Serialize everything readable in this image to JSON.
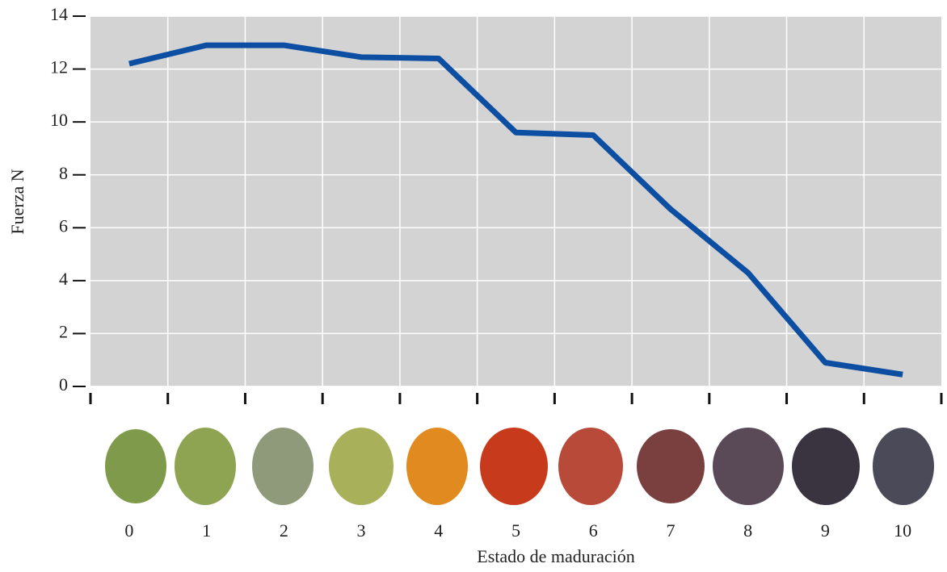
{
  "chart_data": {
    "type": "line",
    "y_label": "Fuerza N",
    "x_label": "Estado de maduración",
    "categories": [
      "0",
      "1",
      "2",
      "3",
      "4",
      "5",
      "6",
      "7",
      "8",
      "9",
      "10"
    ],
    "values": [
      12.2,
      12.9,
      12.9,
      12.45,
      12.4,
      9.6,
      9.5,
      6.7,
      4.3,
      0.9,
      0.45
    ],
    "color": "#0b4ea2",
    "ylim": [
      0,
      14
    ],
    "yticks": [
      0,
      2,
      4,
      6,
      8,
      10,
      12,
      14
    ],
    "grid": true
  }
}
